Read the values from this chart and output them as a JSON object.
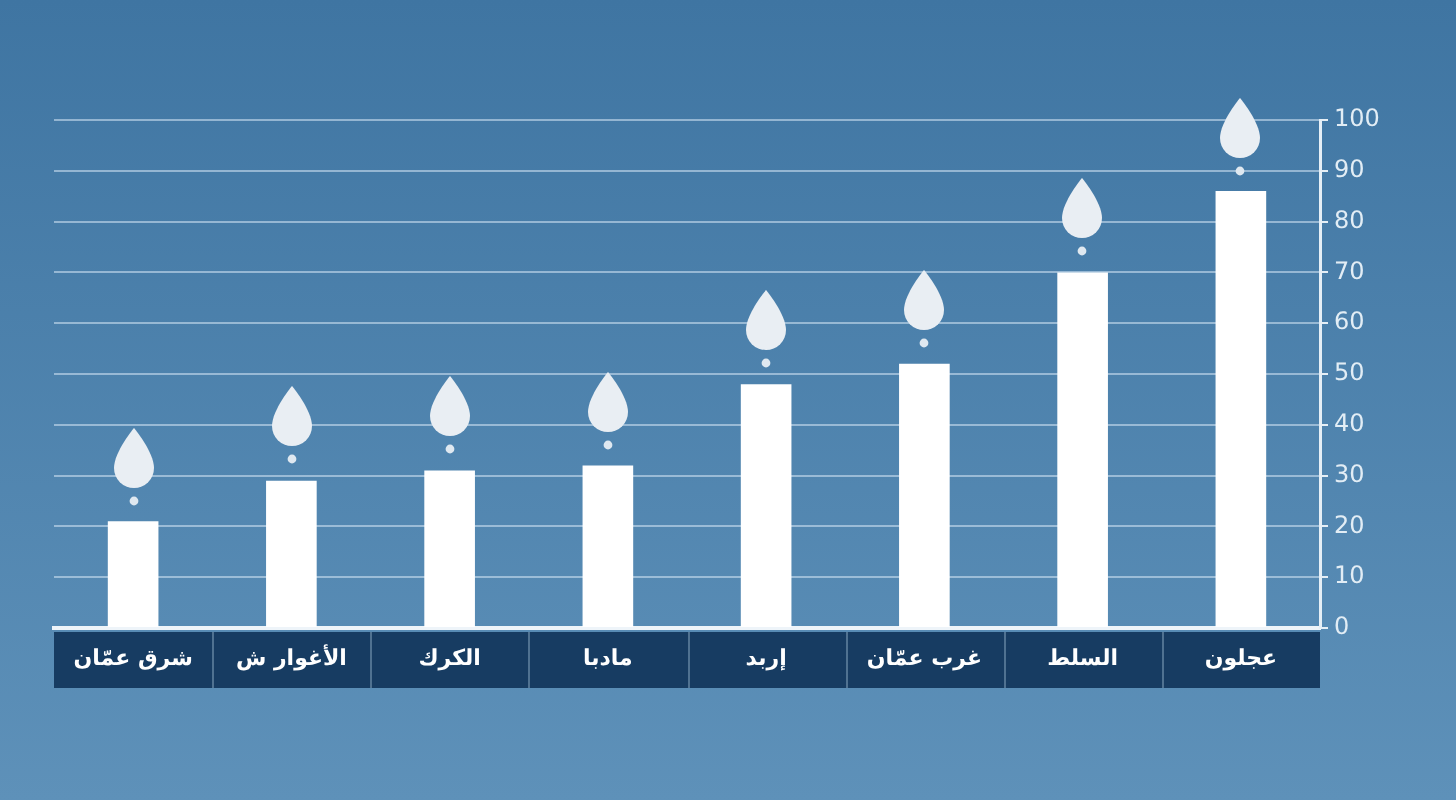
{
  "chart_data": {
    "type": "bar",
    "categories": [
      "شرق عمّان",
      "الأغوار ش",
      "الكرك",
      "مادبا",
      "إربد",
      "غرب عمّان",
      "السلط",
      "عجلون"
    ],
    "values": [
      21,
      29,
      31,
      32,
      48,
      52,
      70,
      86
    ],
    "color": "#ffffff",
    "ylim": [
      0,
      100
    ],
    "yticks": [
      0,
      10,
      20,
      30,
      40,
      50,
      60,
      70,
      80,
      90,
      100
    ],
    "grid": "y"
  }
}
